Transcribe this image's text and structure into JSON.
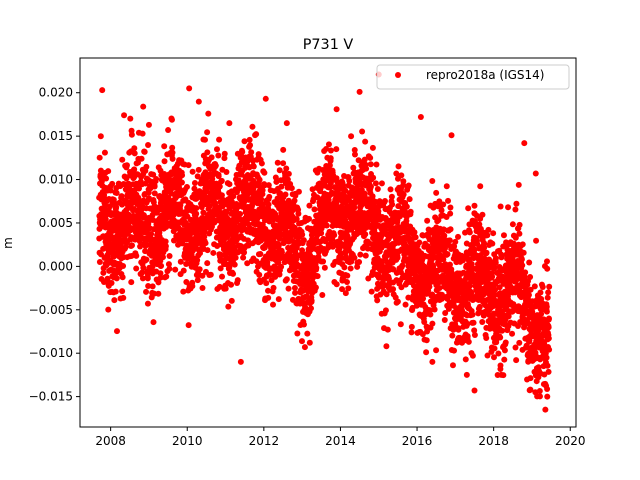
{
  "chart_data": {
    "type": "scatter",
    "title": "P731 V",
    "xlabel": "",
    "ylabel": "m",
    "xlim": [
      2007.2,
      2020.15
    ],
    "ylim": [
      -0.0185,
      0.024
    ],
    "xticks": [
      2008,
      2010,
      2012,
      2014,
      2016,
      2018,
      2020
    ],
    "xtick_labels": [
      "2008",
      "2010",
      "2012",
      "2014",
      "2016",
      "2018",
      "2020"
    ],
    "yticks": [
      -0.015,
      -0.01,
      -0.005,
      0.0,
      0.005,
      0.01,
      0.015,
      0.02
    ],
    "ytick_labels": [
      "−0.015",
      "−0.010",
      "−0.005",
      "0.000",
      "0.005",
      "0.010",
      "0.015",
      "0.020"
    ],
    "grid": false,
    "legend_position": "top-right",
    "series": [
      {
        "name": "repro2018a (IGS14)",
        "color": "#ff0000",
        "marker": "circle",
        "start_year": 2007.7,
        "end_year": 2019.45,
        "daily_points": 4290,
        "x": [
          2007.78,
          2008.35,
          2008.85,
          2009.0,
          2009.5,
          2010.05,
          2010.55,
          2011.1,
          2011.4,
          2012.05,
          2012.6,
          2013.2,
          2013.9,
          2014.5,
          2015.0,
          2015.2,
          2016.1,
          2016.4,
          2016.9,
          2017.3,
          2017.5,
          2018.2,
          2018.8,
          2019.1,
          2019.35,
          2019.4
        ],
        "y": [
          0.0203,
          0.0174,
          0.0184,
          0.0163,
          0.0157,
          0.0205,
          0.0176,
          0.0165,
          -0.011,
          0.0193,
          0.0165,
          -0.0088,
          0.0181,
          0.0201,
          0.0221,
          -0.0092,
          0.0172,
          -0.011,
          0.0151,
          -0.0125,
          -0.0143,
          -0.0125,
          0.0142,
          0.0107,
          -0.0165,
          -0.015
        ],
        "trend": {
          "description": "seasonal oscillation with gradual decline",
          "mean": [
            [
              2008.0,
              0.005
            ],
            [
              2010.0,
              0.0055
            ],
            [
              2012.0,
              0.006
            ],
            [
              2013.0,
              0.001
            ],
            [
              2014.0,
              0.007
            ],
            [
              2015.5,
              0.002
            ],
            [
              2016.5,
              -0.0005
            ],
            [
              2017.5,
              -0.002
            ],
            [
              2018.5,
              -0.003
            ],
            [
              2019.4,
              -0.008
            ]
          ],
          "annual_amplitude": 0.0025,
          "scatter_sd": 0.0033
        }
      }
    ]
  }
}
